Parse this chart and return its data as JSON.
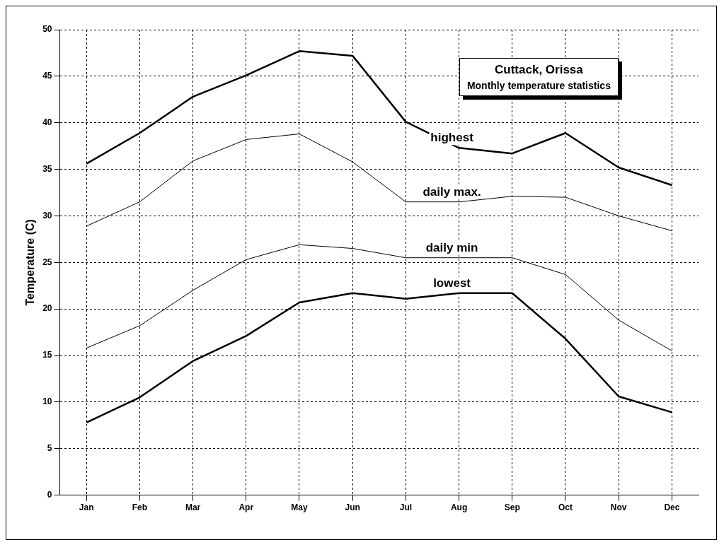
{
  "chart_data": {
    "type": "line",
    "title": "Cuttack, Orissa",
    "subtitle": "Monthly temperature statistics",
    "ylabel": "Temperature (C)",
    "categories": [
      "Jan",
      "Feb",
      "Mar",
      "Apr",
      "May",
      "Jun",
      "Jul",
      "Aug",
      "Sep",
      "Oct",
      "Nov",
      "Dec"
    ],
    "series": [
      {
        "name": "highest",
        "color": "#000000",
        "values": [
          35.6,
          38.9,
          42.8,
          45.1,
          47.7,
          47.2,
          40.1,
          37.3,
          36.7,
          38.9,
          35.2,
          33.3
        ]
      },
      {
        "name": "daily max.",
        "color": "#000000",
        "values": [
          28.9,
          31.5,
          35.9,
          38.2,
          38.8,
          35.8,
          31.5,
          31.5,
          32.1,
          32.0,
          30.0,
          28.4
        ]
      },
      {
        "name": "daily min",
        "color": "#000000",
        "values": [
          15.8,
          18.2,
          22.0,
          25.3,
          26.9,
          26.5,
          25.5,
          25.5,
          25.5,
          23.7,
          18.8,
          15.5
        ]
      },
      {
        "name": "lowest",
        "color": "#000000",
        "values": [
          7.8,
          10.5,
          14.4,
          17.1,
          20.7,
          21.7,
          21.1,
          21.7,
          21.7,
          16.8,
          10.6,
          8.9
        ]
      }
    ],
    "ylim": [
      0,
      50
    ],
    "yticks": [
      0,
      5,
      10,
      15,
      20,
      25,
      30,
      35,
      40,
      45,
      50
    ],
    "grid": true,
    "legend": false,
    "marker": "none",
    "line_style": "solid"
  }
}
